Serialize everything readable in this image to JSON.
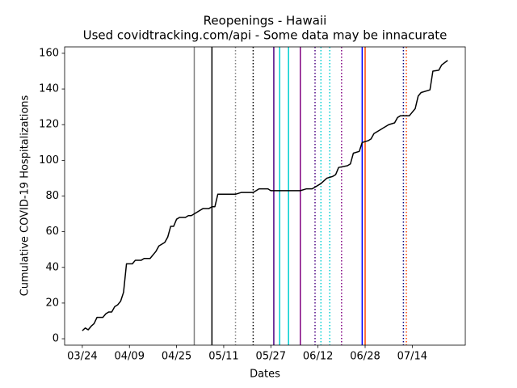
{
  "chart_data": {
    "type": "line",
    "title": "Reopenings - Hawaii",
    "subtitle": "Used covidtracking.com/api - Some data may be innacurate",
    "x_label": "Dates",
    "y_label": "Cumulative COVID-19 Hospitalizations",
    "x": [
      "03/24",
      "03/25",
      "03/26",
      "03/27",
      "03/28",
      "03/29",
      "03/31",
      "04/01",
      "04/02",
      "04/03",
      "04/04",
      "04/05",
      "04/06",
      "04/07",
      "04/08",
      "04/10",
      "04/11",
      "04/13",
      "04/14",
      "04/16",
      "04/18",
      "04/19",
      "04/21",
      "04/22",
      "04/23",
      "04/24",
      "04/25",
      "04/26",
      "04/28",
      "04/29",
      "04/30",
      "05/02",
      "05/03",
      "05/04",
      "05/06",
      "05/07",
      "05/08",
      "05/09",
      "05/15",
      "05/17",
      "05/21",
      "05/23",
      "05/26",
      "05/27",
      "06/06",
      "06/08",
      "06/10",
      "06/11",
      "06/13",
      "06/15",
      "06/17",
      "06/18",
      "06/19",
      "06/22",
      "06/23",
      "06/24",
      "06/26",
      "06/27",
      "06/29",
      "06/30",
      "07/01",
      "07/03",
      "07/04",
      "07/06",
      "07/08",
      "07/09",
      "07/10",
      "07/13",
      "07/15",
      "07/16",
      "07/17",
      "07/20",
      "07/21",
      "07/23",
      "07/24",
      "07/26"
    ],
    "series": [
      {
        "color": "#000000",
        "values": [
          4.5,
          6,
          5,
          7,
          8.5,
          12,
          12,
          14,
          15,
          15,
          18,
          19,
          21,
          26,
          42,
          42,
          44,
          44,
          45,
          45,
          49,
          52,
          54,
          57,
          63,
          63,
          67,
          68,
          68,
          69,
          69,
          71,
          72,
          73,
          73,
          74,
          74,
          81,
          81,
          82,
          82,
          84,
          84,
          83,
          83,
          84,
          84,
          85,
          87,
          90,
          91,
          92,
          96,
          97,
          98,
          104,
          105,
          110,
          111,
          112,
          115,
          117,
          118,
          120,
          121,
          124,
          125,
          125,
          129,
          136,
          138,
          139.5,
          150,
          150.5,
          153.5,
          156
        ]
      }
    ],
    "events": [
      {
        "x": "05/01",
        "color": "#808080",
        "style": "solid"
      },
      {
        "x": "05/07",
        "color": "#000000",
        "style": "solid"
      },
      {
        "x": "05/15",
        "color": "#808080",
        "style": "dotted"
      },
      {
        "x": "05/21",
        "color": "#000000",
        "style": "dotted"
      },
      {
        "x": "05/28",
        "color": "#4b0082",
        "style": "solid"
      },
      {
        "x": "05/30",
        "color": "#00ced1",
        "style": "solid"
      },
      {
        "x": "06/02",
        "color": "#00ced1",
        "style": "solid"
      },
      {
        "x": "06/06",
        "color": "#800080",
        "style": "solid"
      },
      {
        "x": "06/11",
        "color": "#4b0082",
        "style": "dotted"
      },
      {
        "x": "06/13",
        "color": "#00ced1",
        "style": "dotted"
      },
      {
        "x": "06/16",
        "color": "#00ced1",
        "style": "dotted"
      },
      {
        "x": "06/20",
        "color": "#800080",
        "style": "dotted"
      },
      {
        "x": "06/27",
        "color": "#0000ff",
        "style": "solid"
      },
      {
        "x": "06/28",
        "color": "#ff4500",
        "style": "solid"
      },
      {
        "x": "07/11",
        "color": "#000080",
        "style": "dotted"
      },
      {
        "x": "07/12",
        "color": "#ff4500",
        "style": "dotted"
      }
    ],
    "xlim": [
      "03/18",
      "08/01"
    ],
    "xticks": [
      "03/24",
      "04/09",
      "04/25",
      "05/11",
      "05/27",
      "06/12",
      "06/28",
      "07/14"
    ],
    "ylim": [
      -3.6,
      163.6
    ],
    "yticks": [
      0,
      20,
      40,
      60,
      80,
      100,
      120,
      140,
      160
    ],
    "grid": false
  }
}
